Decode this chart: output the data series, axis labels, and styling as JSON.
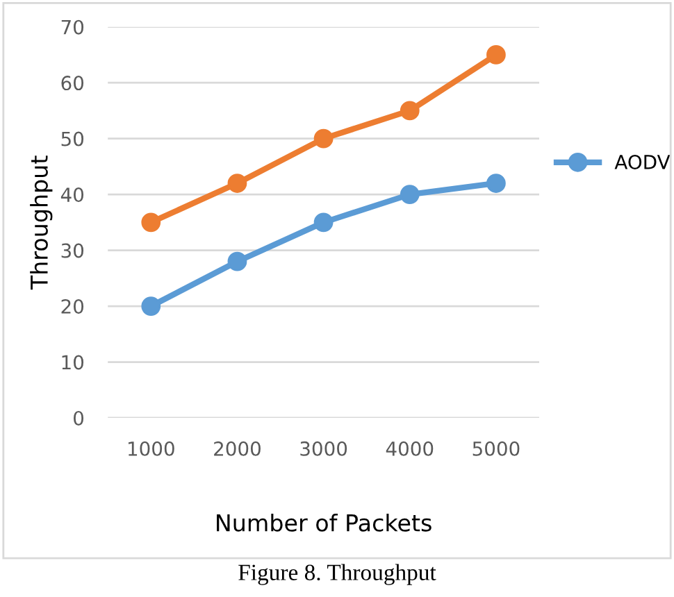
{
  "chart_data": {
    "type": "line",
    "xlabel": "Number of Packets",
    "ylabel": "Throughput",
    "categories": [
      "1000",
      "2000",
      "3000",
      "4000",
      "5000"
    ],
    "series": [
      {
        "name": "AODV",
        "color": "#5b9bd5",
        "values": [
          20,
          28,
          35,
          40,
          42
        ]
      },
      {
        "color": "#ed7d31",
        "values": [
          35,
          42,
          50,
          55,
          65
        ]
      }
    ],
    "ylim": [
      0,
      70
    ],
    "yticks": [
      0,
      10,
      20,
      30,
      40,
      50,
      60,
      70
    ],
    "grid": "y",
    "legend": "right",
    "marker": "circle",
    "line_style": "solid",
    "annotations": [
      "Figure 8. Throughput"
    ]
  }
}
